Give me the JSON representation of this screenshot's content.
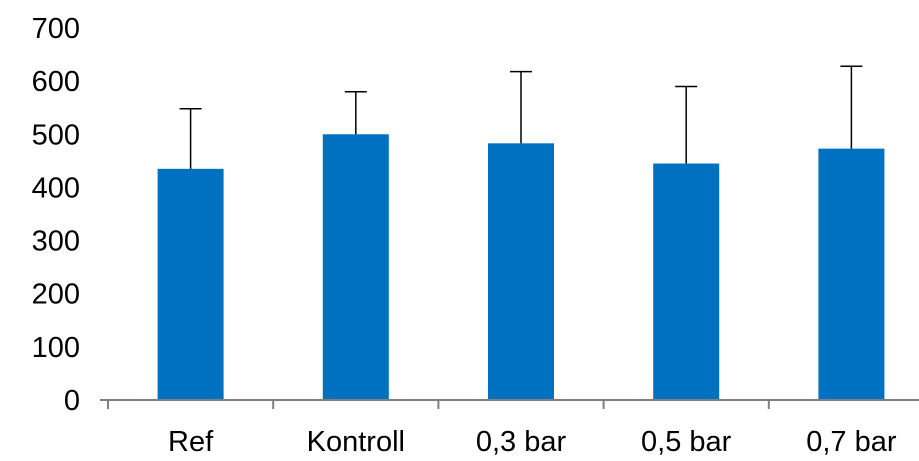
{
  "chart_data": {
    "type": "bar",
    "title": "",
    "xlabel": "",
    "ylabel": "",
    "categories": [
      "Ref",
      "Kontroll",
      "0,3 bar",
      "0,5 bar",
      "0,7 bar"
    ],
    "values": [
      435,
      500,
      483,
      445,
      473
    ],
    "error_plus": [
      113,
      80,
      135,
      145,
      155
    ],
    "ylim": [
      0,
      700
    ],
    "yticks": [
      0,
      100,
      200,
      300,
      400,
      500,
      600,
      700
    ],
    "ytick_labels": [
      "0",
      "100",
      "200",
      "300",
      "400",
      "500",
      "600",
      "700"
    ],
    "grid": false,
    "legend": "none",
    "bar_color": "#0070C0",
    "axis_color": "#7f7f7f",
    "error_bar_color": "#000000"
  }
}
